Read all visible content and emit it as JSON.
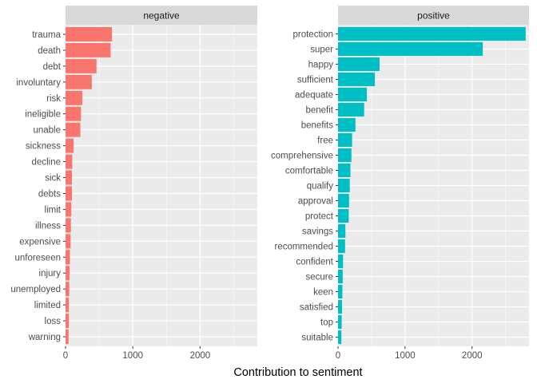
{
  "chart_data": {
    "type": "bar",
    "orientation": "horizontal",
    "xlabel": "Contribution to sentiment",
    "ylabel": "",
    "shared_x_axis": true,
    "xlim": [
      0,
      2850
    ],
    "x_ticks": [
      0,
      1000,
      2000
    ],
    "grid": true,
    "legend": "none",
    "panels": [
      {
        "strip_label": "negative",
        "color": "#F8766D",
        "categories": [
          "trauma",
          "death",
          "debt",
          "involuntary",
          "risk",
          "ineligible",
          "unable",
          "sickness",
          "decline",
          "sick",
          "debts",
          "limit",
          "illness",
          "expensive",
          "unforeseen",
          "injury",
          "unemployed",
          "limited",
          "loss",
          "warning"
        ],
        "values": [
          690,
          670,
          460,
          390,
          250,
          230,
          220,
          120,
          100,
          95,
          95,
          85,
          80,
          75,
          65,
          60,
          55,
          50,
          50,
          45
        ]
      },
      {
        "strip_label": "positive",
        "color": "#00BFC4",
        "categories": [
          "protection",
          "super",
          "happy",
          "sufficient",
          "adequate",
          "benefit",
          "benefits",
          "free",
          "comprehensive",
          "comfortable",
          "qualify",
          "approval",
          "protect",
          "savings",
          "recommended",
          "confident",
          "secure",
          "keen",
          "satisfied",
          "top",
          "suitable"
        ],
        "values": [
          2800,
          2160,
          620,
          550,
          430,
          390,
          260,
          210,
          200,
          185,
          175,
          165,
          160,
          110,
          105,
          75,
          70,
          65,
          60,
          55,
          50
        ]
      }
    ]
  }
}
